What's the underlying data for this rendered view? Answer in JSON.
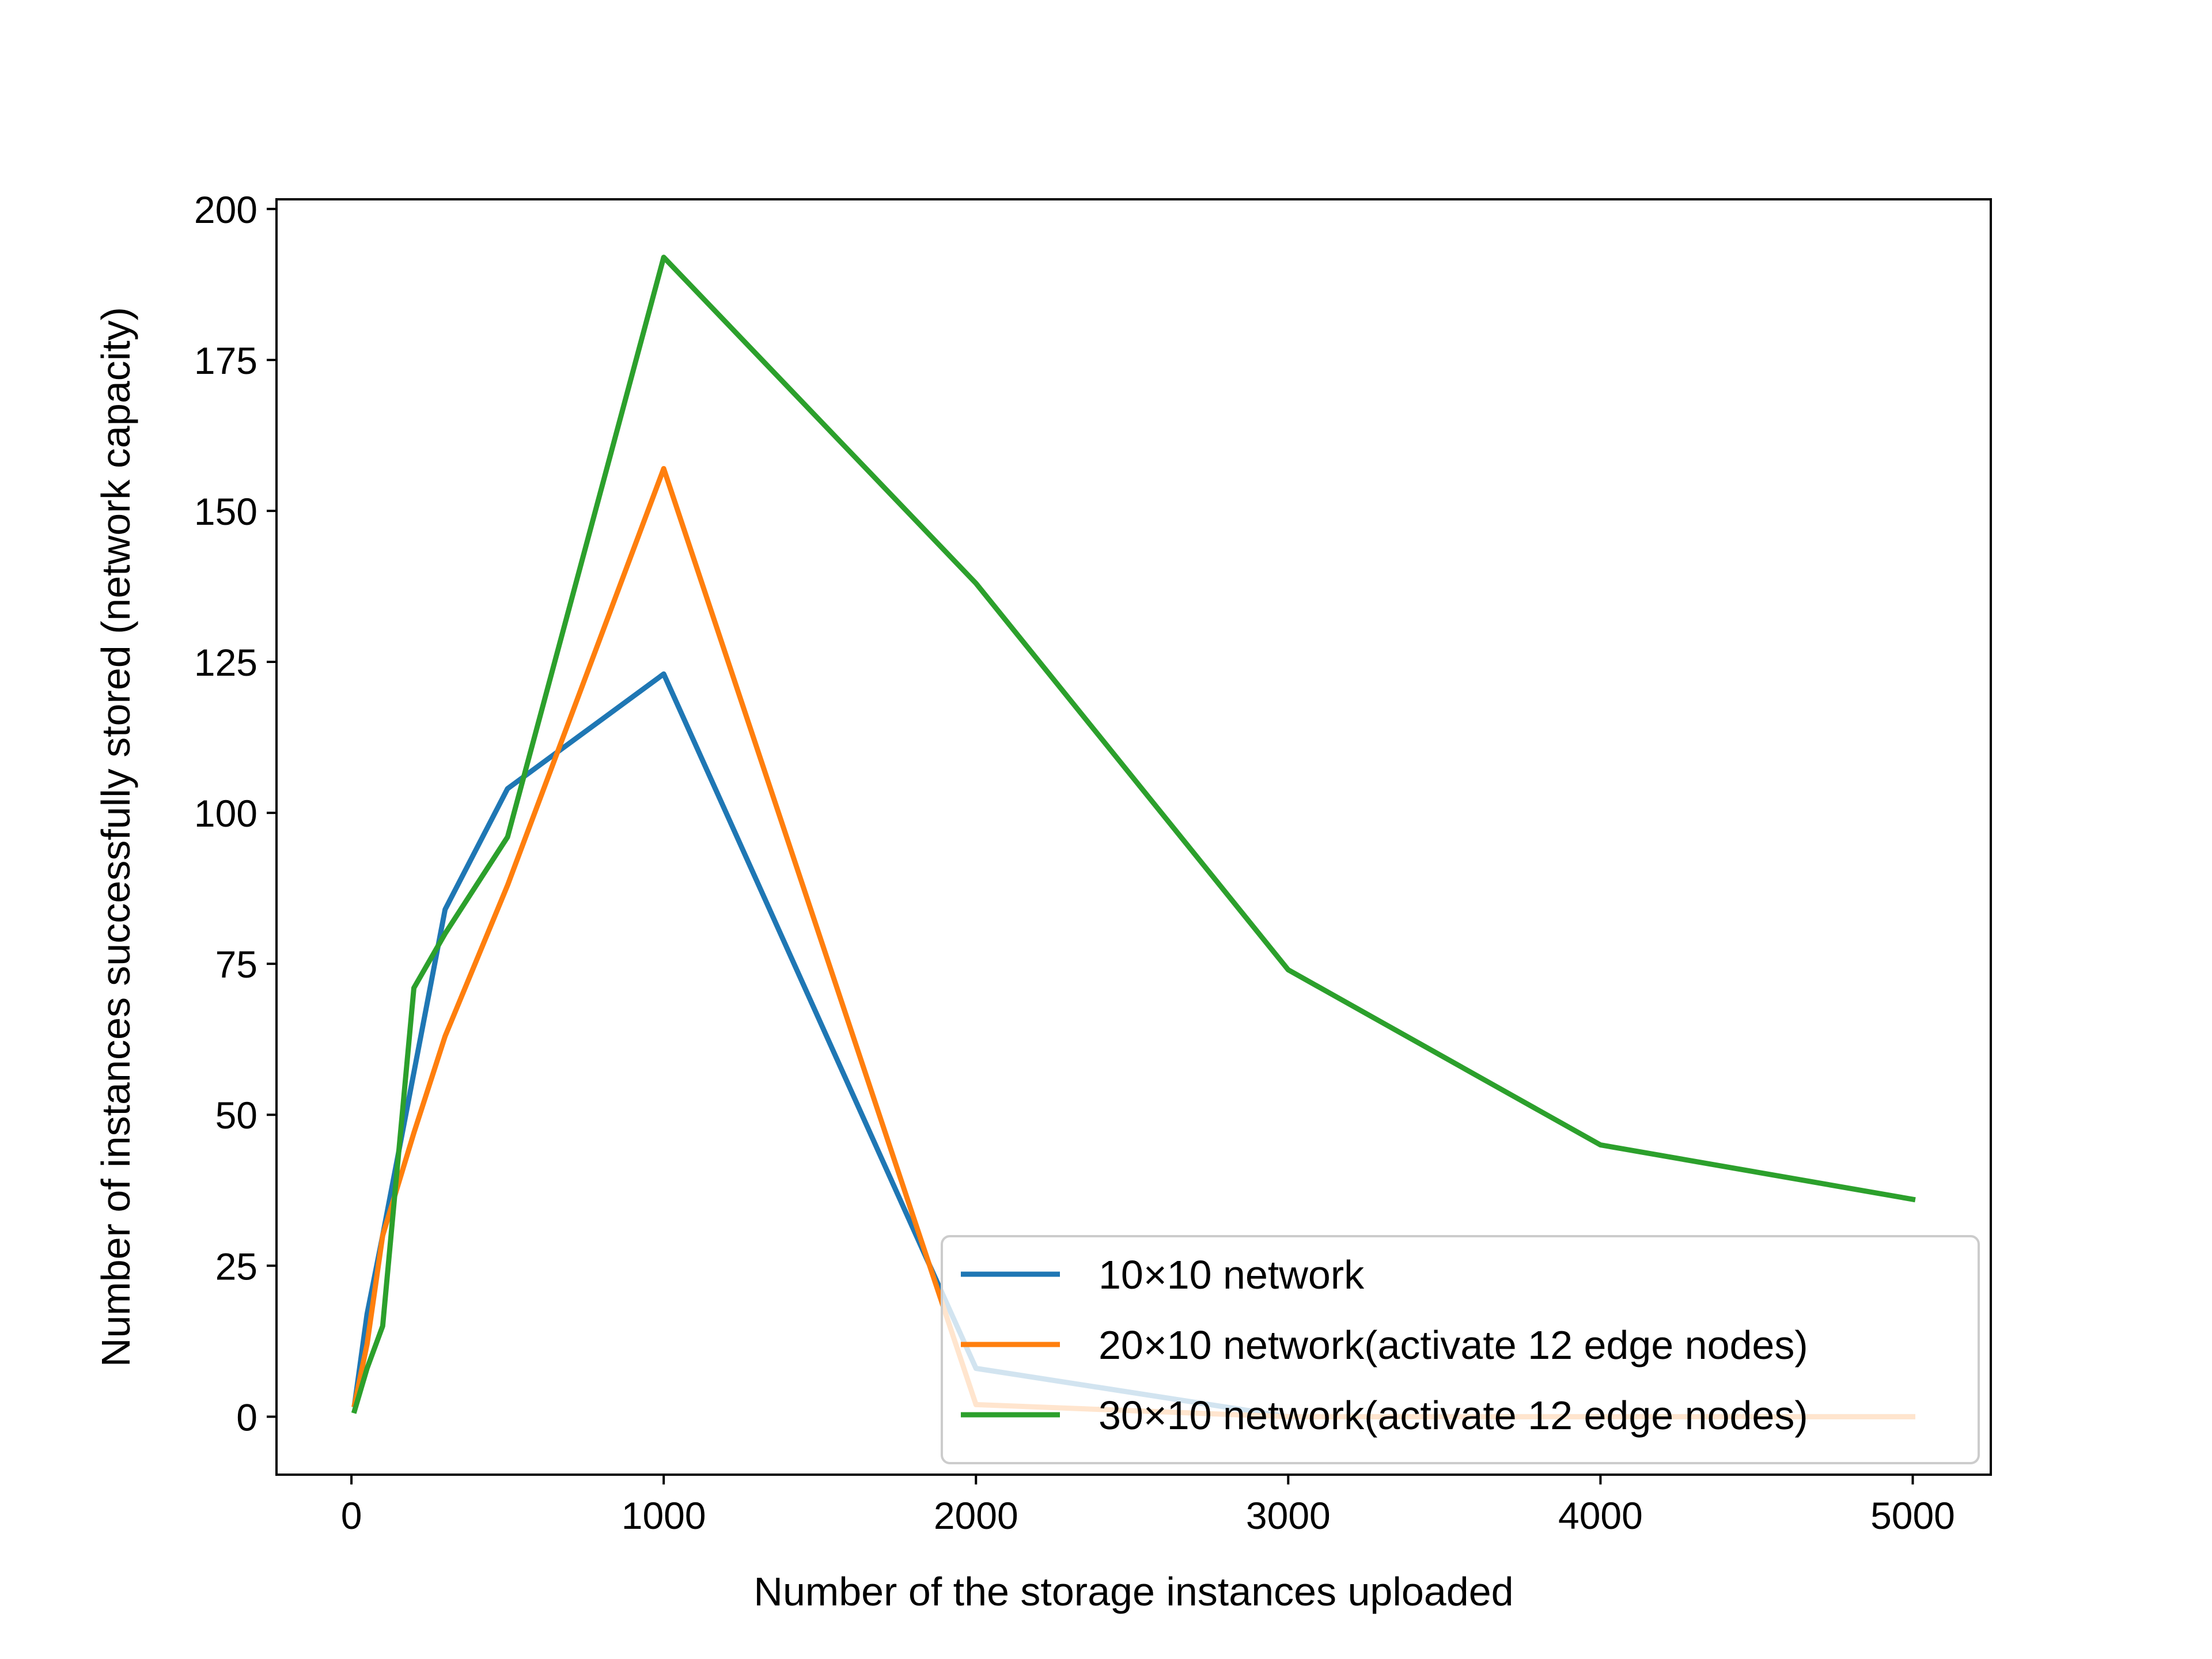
{
  "chart_data": {
    "type": "line",
    "title": "",
    "xlabel": "Number of the storage instances uploaded",
    "ylabel": "Number of instances successfully stored (network capacity)",
    "xlim": [
      -240,
      5250
    ],
    "ylim": [
      -9.6,
      201.6
    ],
    "xticks": [
      0,
      1000,
      2000,
      3000,
      4000,
      5000
    ],
    "yticks": [
      0,
      25,
      50,
      75,
      100,
      125,
      150,
      175,
      200
    ],
    "grid": false,
    "legend_position": "lower-right",
    "series": [
      {
        "name": "10×10 network",
        "color": "#1f77b4",
        "x": [
          10,
          50,
          100,
          200,
          300,
          500,
          1000,
          2000,
          3000,
          4000,
          5000
        ],
        "y": [
          2,
          17,
          30,
          57,
          84,
          104,
          123,
          8,
          0,
          0,
          0
        ]
      },
      {
        "name": "20×10 network(activate 12 edge nodes)",
        "color": "#ff7f0e",
        "x": [
          10,
          50,
          100,
          200,
          300,
          500,
          1000,
          2000,
          3000,
          4000,
          5000
        ],
        "y": [
          2,
          12,
          30,
          47,
          63,
          88,
          157,
          2,
          0,
          0,
          0
        ]
      },
      {
        "name": "30×10 network(activate 12 edge nodes)",
        "color": "#2ca02c",
        "x": [
          10,
          50,
          100,
          200,
          300,
          500,
          1000,
          2000,
          3000,
          4000,
          5000
        ],
        "y": [
          1,
          8,
          15,
          71,
          80,
          96,
          192,
          138,
          74,
          45,
          36
        ]
      }
    ]
  }
}
